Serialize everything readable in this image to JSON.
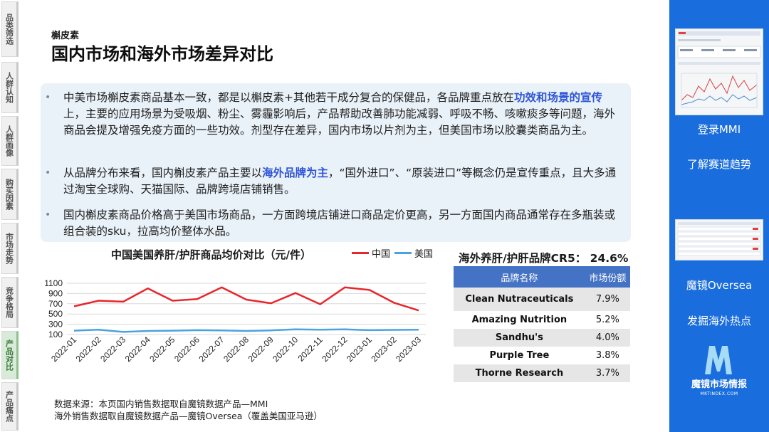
{
  "side_tabs": [
    {
      "label": "品类筛选",
      "active": false
    },
    {
      "label": "人群认知",
      "active": false
    },
    {
      "label": "人群画像",
      "active": false
    },
    {
      "label": "购买因素",
      "active": false
    },
    {
      "label": "市场走势",
      "active": false
    },
    {
      "label": "竞争格局",
      "active": false
    },
    {
      "label": "产品对比",
      "active": true
    },
    {
      "label": "产品痛点",
      "active": false
    }
  ],
  "header": {
    "subtitle": "槲皮素",
    "title": "国内市场和海外市场差异对比"
  },
  "bullets": {
    "b1": {
      "t1": "中美市场槲皮素商品基本一致，都是以槲皮素+其他若干成分复合的保健品，各品牌重点放在",
      "hl": "功效和场景的宣传",
      "t2": "上，主要的应用场景为受吸烟、粉尘、雾霾影响后，产品帮助改善肺功能减弱、呼吸不畅、咳嗽痰多等问题，海外商品会提及增强免疫方面的一些功效。剂型存在差异，国内市场以片剂为主，但美国市场以胶囊类商品为主。"
    },
    "b2": {
      "t1": "从品牌分布来看，国内槲皮素产品主要以",
      "hl": "海外品牌为主",
      "t2": "，“国外进口”、“原装进口”等概念仍是宣传重点，且大多通过淘宝全球购、天猫国际、品牌跨境店铺销售。"
    },
    "b3": {
      "t1": "国内槲皮素商品价格高于美国市场商品，一方面跨境店铺进口商品定价更高，另一方面国内商品通常存在多瓶装或组合装的sku，拉高均价整体水品。"
    }
  },
  "chart_data": {
    "type": "line",
    "title": "中国美国养肝/护肝商品均价对比（元/件）",
    "categories": [
      "2022-01",
      "2022-02",
      "2022-03",
      "2022-04",
      "2022-05",
      "2022-06",
      "2022-07",
      "2022-08",
      "2022-09",
      "2022-10",
      "2022-11",
      "2022-12",
      "2023-01",
      "2023-02",
      "2023-03"
    ],
    "series": [
      {
        "name": "中国",
        "color": "#e8262c",
        "values": [
          650,
          760,
          740,
          1000,
          760,
          790,
          1020,
          780,
          710,
          910,
          690,
          1020,
          970,
          720,
          570
        ]
      },
      {
        "name": "美国",
        "color": "#4aa3df",
        "values": [
          175,
          195,
          150,
          170,
          175,
          185,
          180,
          170,
          180,
          200,
          195,
          200,
          185,
          190,
          195
        ]
      }
    ],
    "yticks": [
      100,
      300,
      500,
      700,
      900,
      1100
    ],
    "ylim": [
      100,
      1100
    ],
    "xlabel": "",
    "ylabel": "",
    "grid": true,
    "legend": "top-right"
  },
  "cr5": {
    "title": "海外养肝/护肝品牌CR5：  24.6%",
    "headers": [
      "品牌名称",
      "市场份额"
    ],
    "rows": [
      {
        "brand": "Clean Nutraceuticals",
        "share": "7.9%"
      },
      {
        "brand": "Amazing Nutrition",
        "share": "5.2%"
      },
      {
        "brand": "Sandhu's",
        "share": "4.0%"
      },
      {
        "brand": "Purple Tree",
        "share": "3.8%"
      },
      {
        "brand": "Thorne Research",
        "share": "3.7%"
      }
    ]
  },
  "source": {
    "line1": "数据来源：本页国内销售数据取自魔镜数据产品—MMI",
    "line2": "海外销售数据取自魔镜数据产品—魔镜Oversea（覆盖美国亚马逊）"
  },
  "promo": {
    "login": "登录MMI",
    "track": "了解赛道趋势",
    "oversea": "魔镜Oversea",
    "hot": "发掘海外热点",
    "brand": "魔镜市场情报",
    "url": "MKTINDEX.COM",
    "bg_color": "#1a6ddd"
  }
}
